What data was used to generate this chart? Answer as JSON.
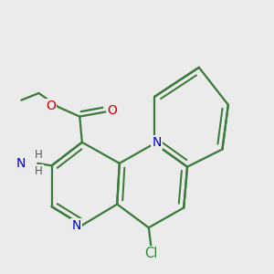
{
  "bg_color": "#ebebeb",
  "bond_color": "#3a7a3a",
  "bond_width": 1.6,
  "atom_colors": {
    "N": "#0000cc",
    "O": "#cc0000",
    "Cl": "#2a8a2a",
    "H": "#555555"
  },
  "font_size": 10
}
